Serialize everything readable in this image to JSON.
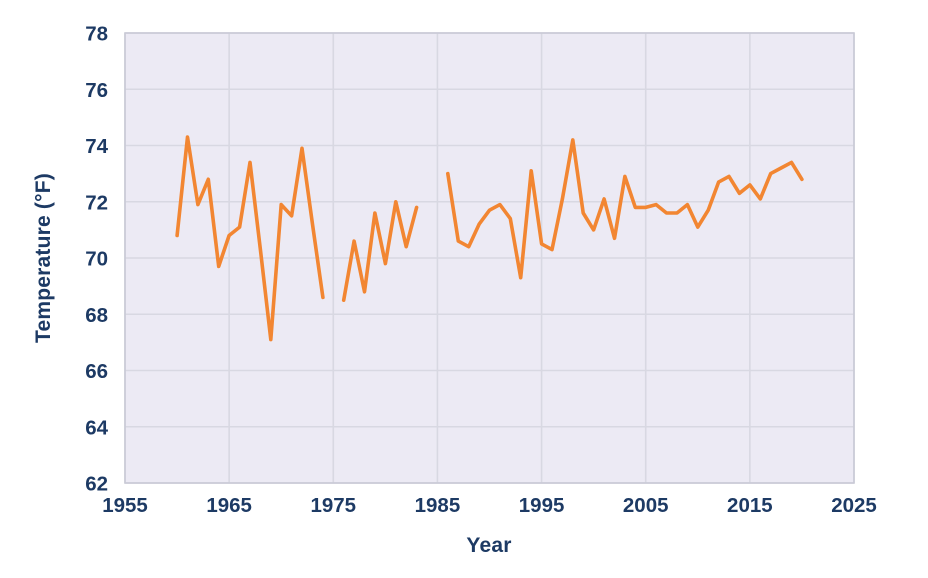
{
  "figure": {
    "xlabel": "Year",
    "ylabel": "Temperature (°F)"
  },
  "chart_data": {
    "type": "line",
    "title": "",
    "xlabel": "Year",
    "ylabel": "Temperature (°F)",
    "xlim": [
      1955,
      2025
    ],
    "ylim": [
      62,
      78
    ],
    "xticks": [
      1955,
      1965,
      1975,
      1985,
      1995,
      2005,
      2015,
      2025
    ],
    "yticks": [
      62,
      64,
      66,
      68,
      70,
      72,
      74,
      76,
      78
    ],
    "grid": true,
    "legend_position": "none",
    "colors": {
      "line": "#F28632",
      "plot_background": "#ECEAF4",
      "gridline": "#D8D8E2",
      "plot_border": "#C9CAD6",
      "text": "#1D3A64"
    },
    "series": [
      {
        "x": [
          1960,
          1961,
          1962,
          1963,
          1964,
          1965,
          1966,
          1967,
          1968,
          1969,
          1970,
          1971,
          1972,
          1973,
          1974,
          1975,
          1976,
          1977,
          1978,
          1979,
          1980,
          1981,
          1982,
          1983,
          1984,
          1985,
          1986,
          1987,
          1988,
          1989,
          1990,
          1991,
          1992,
          1993,
          1994,
          1995,
          1996,
          1997,
          1998,
          1999,
          2000,
          2001,
          2002,
          2003,
          2004,
          2005,
          2006,
          2007,
          2008,
          2009,
          2010,
          2011,
          2012,
          2013,
          2014,
          2015,
          2016,
          2017,
          2018,
          2019,
          2020
        ],
        "y": [
          70.8,
          74.3,
          71.9,
          72.8,
          69.7,
          70.8,
          71.1,
          73.4,
          70.3,
          67.1,
          71.9,
          71.5,
          73.9,
          71.2,
          68.6,
          null,
          68.5,
          70.6,
          68.8,
          71.6,
          69.8,
          72.0,
          70.4,
          71.8,
          null,
          null,
          73.0,
          70.6,
          70.4,
          71.2,
          71.7,
          71.9,
          71.4,
          69.3,
          73.1,
          70.5,
          70.3,
          72.1,
          74.2,
          71.6,
          71.0,
          72.1,
          70.7,
          72.9,
          71.8,
          71.8,
          71.9,
          71.6,
          71.6,
          71.9,
          71.1,
          71.7,
          72.7,
          72.9,
          72.3,
          72.6,
          72.1,
          73.0,
          73.2,
          73.4,
          72.8
        ]
      }
    ]
  }
}
